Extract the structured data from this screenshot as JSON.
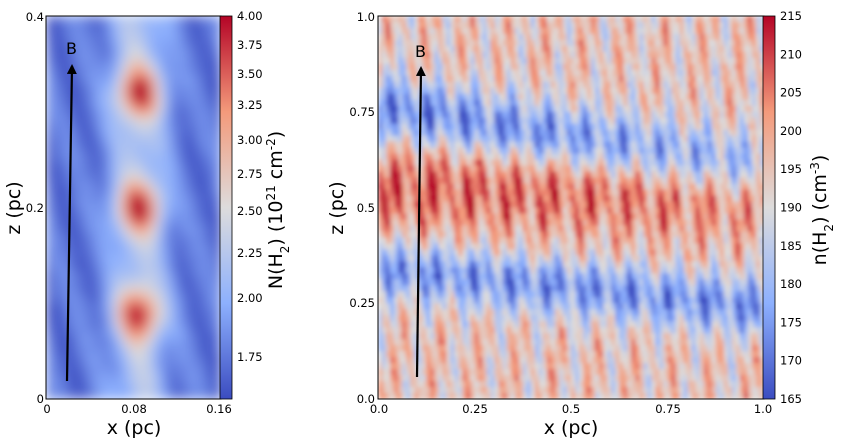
{
  "colors": {
    "low": "#3b4cc0",
    "mid": "#dddcdc",
    "high": "#b40426"
  },
  "chart_data": [
    {
      "type": "heatmap",
      "xlabel": "x (pc)",
      "ylabel": "z (pc)",
      "xlim": [
        0,
        0.16
      ],
      "ylim": [
        0,
        0.4
      ],
      "xticks": [
        "0",
        "0.08",
        "0.16"
      ],
      "yticks": [
        "0",
        "0.2",
        "0.4"
      ],
      "colorbar": {
        "label": "N(H2) (10^21 cm^-2)",
        "label_parts": {
          "a": "N(H",
          "b": "2",
          "c": ") (10",
          "d": "21",
          "e": " cm",
          "f": "-2",
          "g": ")"
        },
        "range": [
          1.55,
          4.0
        ],
        "ticks": [
          "1.75",
          "2.00",
          "2.25",
          "2.50",
          "2.75",
          "3.00",
          "3.25",
          "3.50",
          "3.75",
          "4.00"
        ]
      },
      "field_annotation": {
        "label": "B",
        "from": [
          0.012,
          0.02
        ],
        "to": [
          0.018,
          0.345
        ]
      }
    },
    {
      "type": "heatmap",
      "xlabel": "x (pc)",
      "ylabel": "z (pc)",
      "xlim": [
        0,
        1.0
      ],
      "ylim": [
        0,
        1.0
      ],
      "xticks": [
        "0.0",
        "0.25",
        "0.5",
        "0.75",
        "1.0"
      ],
      "yticks": [
        "0.0",
        "0.25",
        "0.5",
        "0.75",
        "1.0"
      ],
      "colorbar": {
        "label": "n(H2) (cm^-3)",
        "label_parts": {
          "a": "n(H",
          "b": "2",
          "c": ") (cm",
          "d": "-3",
          "e": ")"
        },
        "range": [
          165,
          215
        ],
        "ticks": [
          "165",
          "170",
          "175",
          "180",
          "185",
          "190",
          "195",
          "200",
          "205",
          "210",
          "215"
        ]
      },
      "field_annotation": {
        "label": "B",
        "from": [
          0.1,
          0.06
        ],
        "to": [
          0.11,
          0.87
        ]
      }
    }
  ]
}
